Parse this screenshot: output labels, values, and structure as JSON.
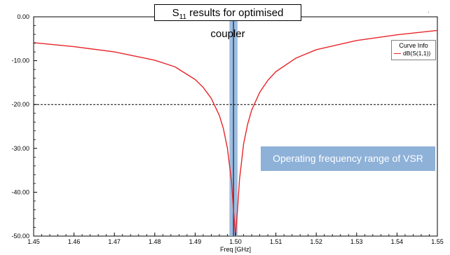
{
  "chart_data": {
    "type": "line",
    "title": "S",
    "title_sub": "11",
    "title_rest": " results for optimised coupler",
    "xlabel": "Freq [GHz]",
    "ylabel": "",
    "xlim": [
      1.45,
      1.55
    ],
    "ylim": [
      -50,
      0
    ],
    "x_ticks": [
      "1.45",
      "1.46",
      "1.47",
      "1.48",
      "1.49",
      "1.50",
      "1.51",
      "1.52",
      "1.53",
      "1.54",
      "1.55"
    ],
    "y_ticks": [
      "0.00",
      "-10.00",
      "-20.00",
      "-30.00",
      "-40.00",
      "-50.00"
    ],
    "grid": false,
    "legend_position": "top-right",
    "legend_title": "Curve Info",
    "series": [
      {
        "name": "dB(S(1,1))",
        "color": "#e8262a",
        "x": [
          1.45,
          1.46,
          1.47,
          1.48,
          1.485,
          1.49,
          1.492,
          1.494,
          1.496,
          1.497,
          1.498,
          1.499,
          1.4995,
          1.5,
          1.5005,
          1.501,
          1.502,
          1.503,
          1.504,
          1.506,
          1.508,
          1.51,
          1.515,
          1.52,
          1.53,
          1.54,
          1.55
        ],
        "y": [
          -5.9,
          -6.8,
          -8.0,
          -9.9,
          -11.4,
          -14.3,
          -16.1,
          -18.6,
          -22.5,
          -25.5,
          -30.0,
          -37.5,
          -44.0,
          -50.0,
          -44.0,
          -37.0,
          -29.0,
          -24.5,
          -21.3,
          -17.2,
          -14.5,
          -12.5,
          -9.4,
          -7.5,
          -5.4,
          -4.1,
          -3.1
        ]
      }
    ],
    "reference_line": {
      "y": -20,
      "color": "#000000",
      "style": "dashed"
    },
    "highlight_band": {
      "x_start": 1.4985,
      "x_end": 1.5005,
      "color": "#8eb1d8"
    },
    "marker_line": {
      "x": 1.4995,
      "color": "#1f3f7a"
    },
    "annotations": [
      {
        "text": "Operating frequency range of VSR",
        "color": "#8eb1d8"
      }
    ]
  }
}
